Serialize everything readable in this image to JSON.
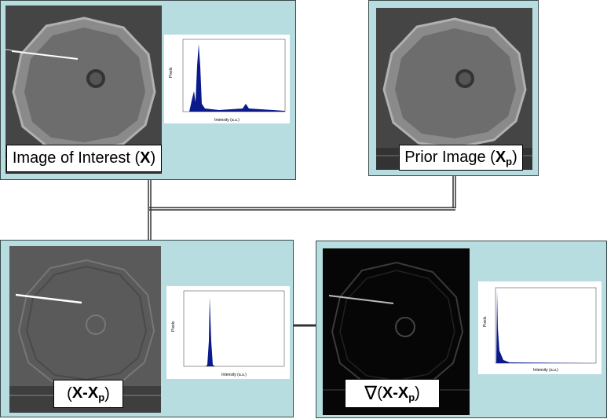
{
  "panels": {
    "interest": {
      "caption_text": "Image of Interest (",
      "caption_symbol": "X",
      "caption_close": ")"
    },
    "prior": {
      "caption_text": "Prior Image (",
      "caption_symbol": "X",
      "caption_sub": "p",
      "caption_close": ")"
    },
    "difference": {
      "caption_open": "(",
      "caption_symbol": "X-X",
      "caption_sub": "p",
      "caption_close": ")"
    },
    "gradient": {
      "caption_operator": "∇",
      "caption_open": "(",
      "caption_symbol": "X-X",
      "caption_sub": "p",
      "caption_close": ")"
    }
  },
  "histograms": {
    "interest": {
      "ylabel": "Pixels",
      "xlabel": "Intensity (a.u.)",
      "fill_color": "#0a1a8c"
    },
    "difference": {
      "ylabel": "Pixels",
      "xlabel": "Intensity (a.u.)",
      "fill_color": "#0a1a8c"
    },
    "gradient": {
      "ylabel": "Pixels",
      "xlabel": "Intensity (a.u.)",
      "fill_color": "#0a1a8c"
    }
  },
  "colors": {
    "panel_bg": "#b7dde0",
    "connector": "#333333"
  }
}
